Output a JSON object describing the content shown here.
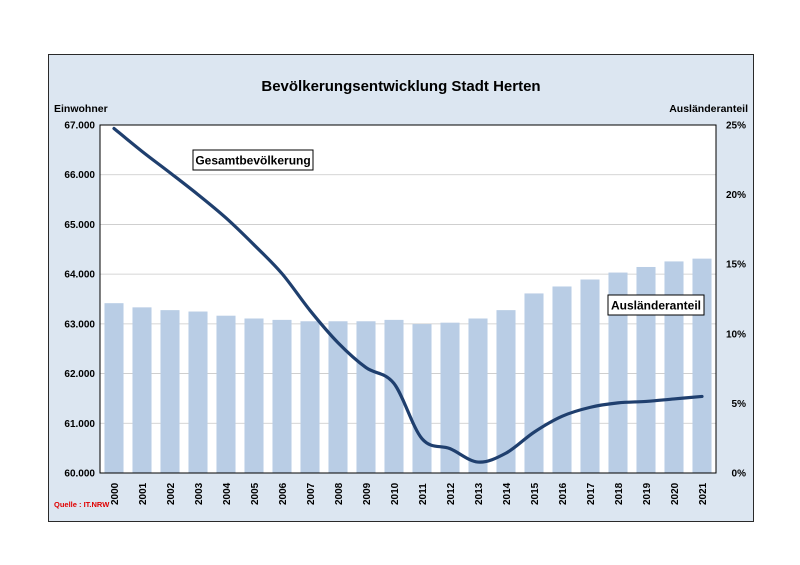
{
  "chart_data": {
    "type": "bar+line",
    "title": "Bevölkerungsentwicklung Stadt Herten",
    "ylabel_left": "Einwohner",
    "ylabel_right": "Ausländeranteil",
    "source": "Quelle : IT.NRW",
    "categories": [
      "2000",
      "2001",
      "2002",
      "2003",
      "2004",
      "2005",
      "2006",
      "2007",
      "2008",
      "2009",
      "2010",
      "2011",
      "2012",
      "2013",
      "2014",
      "2015",
      "2016",
      "2017",
      "2018",
      "2019",
      "2020",
      "2021"
    ],
    "y_left_ticks": [
      "60.000",
      "61.000",
      "62.000",
      "63.000",
      "64.000",
      "65.000",
      "66.000",
      "67.000"
    ],
    "y_left_range": [
      60000,
      67000
    ],
    "y_right_ticks": [
      "0%",
      "5%",
      "10%",
      "15%",
      "20%",
      "25%"
    ],
    "y_right_range": [
      0,
      25
    ],
    "series": [
      {
        "name": "Ausländeranteil",
        "type": "bar",
        "axis": "right",
        "values": [
          12.2,
          11.9,
          11.7,
          11.6,
          11.3,
          11.1,
          11.0,
          10.9,
          10.9,
          10.9,
          11.0,
          10.7,
          10.8,
          11.1,
          11.7,
          12.9,
          13.4,
          13.9,
          14.4,
          14.8,
          15.2,
          15.4
        ]
      },
      {
        "name": "Gesamtbevölkerung",
        "type": "line",
        "axis": "left",
        "values": [
          66930,
          66470,
          66040,
          65600,
          65130,
          64590,
          64010,
          63270,
          62620,
          62120,
          61800,
          60690,
          60490,
          60220,
          60400,
          60820,
          61140,
          61320,
          61410,
          61440,
          61490,
          61540
        ]
      }
    ],
    "annotations": [
      "Gesamtbevölkerung",
      "Ausländeranteil"
    ],
    "colors": {
      "bar": "#b9cde5",
      "line": "#1f3f6e",
      "frame": "#dce6f1",
      "source": "#e00000"
    },
    "grid": true
  }
}
